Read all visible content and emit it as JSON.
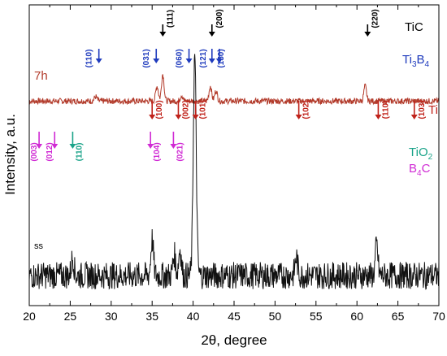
{
  "chart_data": {
    "type": "line",
    "xlabel": "2θ, degree",
    "ylabel": "Intensity, a.u.",
    "xlim": [
      20,
      70
    ],
    "x_ticks": [
      20,
      25,
      30,
      35,
      40,
      45,
      50,
      55,
      60,
      65,
      70
    ],
    "y_ticks_labeled": false,
    "grid": false,
    "series": [
      {
        "name": "7h",
        "color": "#b23a2a",
        "baseline": 0.68,
        "noise": 0.01,
        "peaks": [
          {
            "x": 28.1,
            "h": 0.015
          },
          {
            "x": 35.6,
            "h": 0.05
          },
          {
            "x": 36.3,
            "h": 0.09
          },
          {
            "x": 38.6,
            "h": 0.02
          },
          {
            "x": 42.1,
            "h": 0.05
          },
          {
            "x": 42.8,
            "h": 0.035
          },
          {
            "x": 61.0,
            "h": 0.05
          }
        ]
      },
      {
        "name": "ss",
        "color": "#111111",
        "baseline": 0.1,
        "noise": 0.045,
        "peaks": [
          {
            "x": 25.3,
            "h": 0.06
          },
          {
            "x": 35.0,
            "h": 0.12
          },
          {
            "x": 37.7,
            "h": 0.07
          },
          {
            "x": 38.4,
            "h": 0.09
          },
          {
            "x": 40.2,
            "h": 0.73
          },
          {
            "x": 52.6,
            "h": 0.06
          },
          {
            "x": 62.4,
            "h": 0.1
          },
          {
            "x": 70.4,
            "h": 0.05
          }
        ]
      }
    ],
    "annotations": [
      {
        "phase": "TiC",
        "label": "(111)",
        "x": 36.3,
        "row": "top",
        "color": "#000000"
      },
      {
        "phase": "TiC",
        "label": "(200)",
        "x": 42.3,
        "row": "top",
        "color": "#000000"
      },
      {
        "phase": "TiC",
        "label": "(220)",
        "x": 61.3,
        "row": "top",
        "color": "#000000"
      },
      {
        "phase": "Ti3B4",
        "label": "(110)",
        "x": 28.5,
        "row": "mid",
        "color": "#1f3bbd"
      },
      {
        "phase": "Ti3B4",
        "label": "(031)",
        "x": 35.5,
        "row": "mid",
        "color": "#1f3bbd"
      },
      {
        "phase": "Ti3B4",
        "label": "(060)",
        "x": 39.5,
        "row": "mid",
        "color": "#1f3bbd"
      },
      {
        "phase": "Ti3B4",
        "label": "(121)",
        "x": 42.3,
        "row": "mid",
        "color": "#1f3bbd"
      },
      {
        "phase": "Ti3B4",
        "label": "(150)",
        "x": 43.2,
        "row": "mid",
        "color": "#1f3bbd"
      },
      {
        "phase": "Ti",
        "label": "(100)",
        "x": 35.0,
        "row": "low",
        "color": "#c0221a"
      },
      {
        "phase": "Ti",
        "label": "(002)",
        "x": 38.2,
        "row": "low",
        "color": "#c0221a"
      },
      {
        "phase": "Ti",
        "label": "(101)",
        "x": 40.3,
        "row": "low",
        "color": "#c0221a"
      },
      {
        "phase": "Ti",
        "label": "(102)",
        "x": 52.9,
        "row": "low",
        "color": "#c0221a"
      },
      {
        "phase": "Ti",
        "label": "(110)",
        "x": 62.6,
        "row": "low",
        "color": "#c0221a"
      },
      {
        "phase": "Ti",
        "label": "(103)",
        "x": 67.0,
        "row": "low",
        "color": "#c0221a"
      },
      {
        "phase": "TiO2",
        "label": "(110)",
        "x": 25.3,
        "row": "low2",
        "color": "#1aa389"
      },
      {
        "phase": "B4C",
        "label": "(003)",
        "x": 21.2,
        "row": "low2",
        "color": "#d02ad4"
      },
      {
        "phase": "B4C",
        "label": "(012)",
        "x": 23.1,
        "row": "low2",
        "color": "#d02ad4"
      },
      {
        "phase": "B4C",
        "label": "(104)",
        "x": 34.8,
        "row": "low2",
        "color": "#d02ad4"
      },
      {
        "phase": "B4C",
        "label": "(021)",
        "x": 37.6,
        "row": "low2",
        "color": "#d02ad4"
      }
    ],
    "legend": [
      {
        "label": "TiC",
        "color": "#000000"
      },
      {
        "label": "Ti3B4",
        "color": "#1f3bbd"
      },
      {
        "label": "Ti",
        "color": "#c0221a"
      },
      {
        "label": "TiO2",
        "color": "#1aa389"
      },
      {
        "label": "B4C",
        "color": "#d02ad4"
      }
    ]
  }
}
